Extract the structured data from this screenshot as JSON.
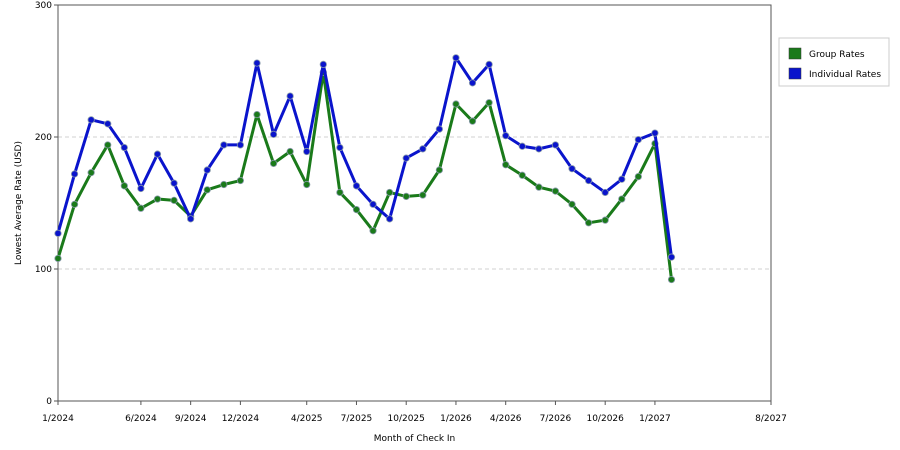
{
  "chart_data": {
    "type": "line",
    "title": "",
    "xlabel": "Month of Check In",
    "ylabel": "Lowest Average Rate (USD)",
    "ylim": [
      0,
      300
    ],
    "yticks": [
      "0",
      "100",
      "200",
      "300"
    ],
    "x": [
      "1/2024",
      "2/2024",
      "3/2024",
      "4/2024",
      "5/2024",
      "6/2024",
      "7/2024",
      "8/2024",
      "9/2024",
      "10/2024",
      "11/2024",
      "12/2024",
      "1/2025",
      "2/2025",
      "3/2025",
      "4/2025",
      "5/2025",
      "6/2025",
      "7/2025",
      "8/2025",
      "9/2025",
      "10/2025",
      "11/2025",
      "12/2025",
      "1/2026",
      "2/2026",
      "3/2026",
      "4/2026",
      "5/2026",
      "6/2026",
      "7/2026",
      "8/2026",
      "9/2026",
      "10/2026",
      "11/2026",
      "12/2026",
      "1/2027",
      "2/2027",
      "3/2027",
      "4/2027",
      "5/2027",
      "6/2027",
      "7/2027",
      "8/2027"
    ],
    "xtick_labels": [
      "1/2024",
      "6/2024",
      "9/2024",
      "12/2024",
      "4/2025",
      "7/2025",
      "10/2025",
      "1/2026",
      "4/2026",
      "7/2026",
      "10/2026",
      "1/2027",
      "8/2027"
    ],
    "grid": "horizontal dashed at 100 and 200",
    "legend_position": "right",
    "series": [
      {
        "name": "Group Rates",
        "color": "#1a7a1a",
        "points": [
          [
            "1/2024",
            108
          ],
          [
            "2/2024",
            149
          ],
          [
            "3/2024",
            173
          ],
          [
            "4/2024",
            194
          ],
          [
            "5/2024",
            163
          ],
          [
            "6/2024",
            146
          ],
          [
            "7/2024",
            153
          ],
          [
            "8/2024",
            152
          ],
          [
            "9/2024",
            140
          ],
          [
            "10/2024",
            160
          ],
          [
            "11/2024",
            164
          ],
          [
            "12/2024",
            167
          ],
          [
            "1/2025",
            217
          ],
          [
            "2/2025",
            180
          ],
          [
            "3/2025",
            189
          ],
          [
            "4/2025",
            164
          ],
          [
            "5/2025",
            249
          ],
          [
            "6/2025",
            158
          ],
          [
            "7/2025",
            145
          ],
          [
            "8/2025",
            129
          ],
          [
            "9/2025",
            158
          ],
          [
            "10/2025",
            155
          ],
          [
            "11/2025",
            156
          ],
          [
            "12/2025",
            175
          ],
          [
            "1/2026",
            225
          ],
          [
            "2/2026",
            212
          ],
          [
            "3/2026",
            226
          ],
          [
            "4/2026",
            179
          ],
          [
            "5/2026",
            171
          ],
          [
            "6/2026",
            162
          ],
          [
            "7/2026",
            159
          ],
          [
            "8/2026",
            149
          ],
          [
            "9/2026",
            135
          ],
          [
            "10/2026",
            137
          ],
          [
            "11/2026",
            153
          ],
          [
            "12/2026",
            170
          ],
          [
            "1/2027",
            195
          ],
          [
            "2/2027",
            92
          ]
        ]
      },
      {
        "name": "Individual Rates",
        "color": "#0a14cc",
        "points": [
          [
            "1/2024",
            127
          ],
          [
            "2/2024",
            172
          ],
          [
            "3/2024",
            213
          ],
          [
            "4/2024",
            210
          ],
          [
            "5/2024",
            192
          ],
          [
            "6/2024",
            161
          ],
          [
            "7/2024",
            187
          ],
          [
            "8/2024",
            165
          ],
          [
            "9/2024",
            138
          ],
          [
            "10/2024",
            175
          ],
          [
            "11/2024",
            194
          ],
          [
            "12/2024",
            194
          ],
          [
            "1/2025",
            256
          ],
          [
            "2/2025",
            202
          ],
          [
            "3/2025",
            231
          ],
          [
            "4/2025",
            189
          ],
          [
            "5/2025",
            255
          ],
          [
            "6/2025",
            192
          ],
          [
            "7/2025",
            163
          ],
          [
            "8/2025",
            149
          ],
          [
            "9/2025",
            138
          ],
          [
            "10/2025",
            184
          ],
          [
            "11/2025",
            191
          ],
          [
            "12/2025",
            206
          ],
          [
            "1/2026",
            260
          ],
          [
            "2/2026",
            241
          ],
          [
            "3/2026",
            255
          ],
          [
            "4/2026",
            201
          ],
          [
            "5/2026",
            193
          ],
          [
            "6/2026",
            191
          ],
          [
            "7/2026",
            194
          ],
          [
            "8/2026",
            176
          ],
          [
            "9/2026",
            167
          ],
          [
            "10/2026",
            158
          ],
          [
            "11/2026",
            168
          ],
          [
            "12/2026",
            198
          ],
          [
            "1/2027",
            203
          ],
          [
            "2/2027",
            109
          ]
        ]
      }
    ]
  }
}
